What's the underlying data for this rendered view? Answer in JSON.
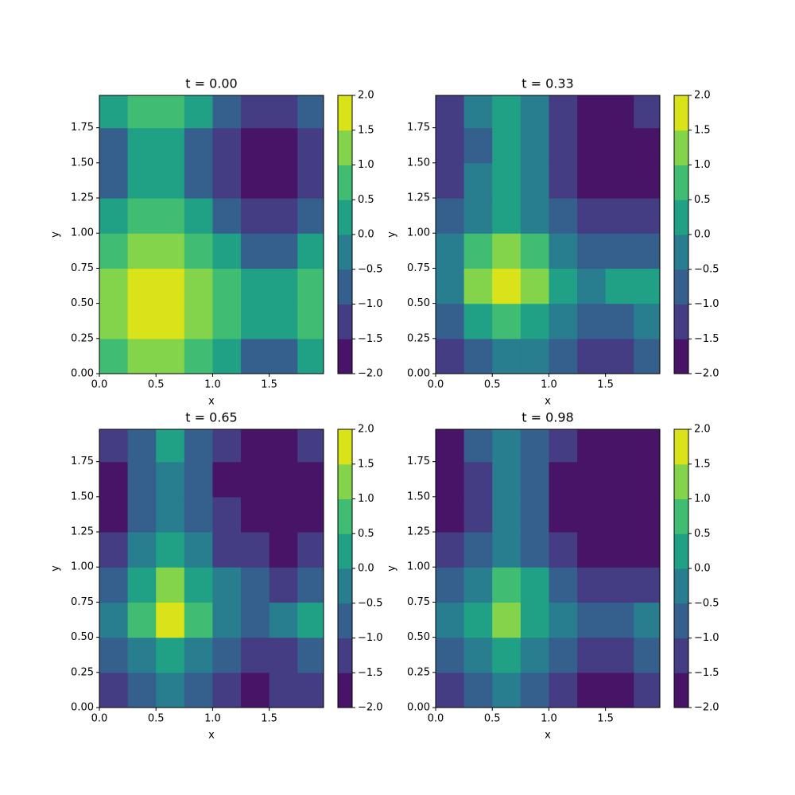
{
  "chart_data": [
    {
      "type": "contour",
      "title": "t = 0.00",
      "xlabel": "x",
      "ylabel": "y",
      "x": [
        0.125,
        0.375,
        0.625,
        0.875,
        1.125,
        1.375,
        1.625,
        1.875
      ],
      "y": [
        0.125,
        0.375,
        0.625,
        0.875,
        1.125,
        1.375,
        1.625,
        1.875
      ],
      "z": [
        [
          0.77,
          1.31,
          1.31,
          0.77,
          0,
          -0.54,
          -0.54,
          0
        ],
        [
          1.31,
          1.85,
          1.85,
          1.31,
          0.54,
          0,
          0,
          0.54
        ],
        [
          1.31,
          1.85,
          1.85,
          1.31,
          0.54,
          0,
          0,
          0.54
        ],
        [
          0.77,
          1.31,
          1.31,
          0.77,
          0,
          -0.54,
          -0.54,
          0
        ],
        [
          0,
          0.54,
          0.54,
          0,
          -0.77,
          -1.31,
          -1.31,
          -0.77
        ],
        [
          -0.54,
          0,
          0,
          -0.54,
          -1.31,
          -1.85,
          -1.85,
          -1.31
        ],
        [
          -0.54,
          0,
          0,
          -0.54,
          -1.31,
          -1.85,
          -1.85,
          -1.31
        ],
        [
          0,
          0.54,
          0.54,
          0,
          -0.77,
          -1.31,
          -1.31,
          -0.77
        ]
      ],
      "xlim": [
        0,
        1.98
      ],
      "ylim": [
        0,
        1.98
      ],
      "xticks": [
        {
          "value": 0,
          "label": "0.0"
        },
        {
          "value": 0.5,
          "label": "0.5"
        },
        {
          "value": 1,
          "label": "1.0"
        },
        {
          "value": 1.5,
          "label": "1.5"
        }
      ],
      "yticks": [
        {
          "value": 0,
          "label": "0.00"
        },
        {
          "value": 0.25,
          "label": "0.25"
        },
        {
          "value": 0.5,
          "label": "0.50"
        },
        {
          "value": 0.75,
          "label": "0.75"
        },
        {
          "value": 1,
          "label": "1.00"
        },
        {
          "value": 1.25,
          "label": "1.25"
        },
        {
          "value": 1.5,
          "label": "1.50"
        },
        {
          "value": 1.75,
          "label": "1.75"
        }
      ],
      "levels": [
        {
          "value": -2,
          "label": "−2.0"
        },
        {
          "value": -1.5,
          "label": "−1.5"
        },
        {
          "value": -1,
          "label": "−1.0"
        },
        {
          "value": -0.5,
          "label": "−0.5"
        },
        {
          "value": 0,
          "label": "0.0"
        },
        {
          "value": 0.5,
          "label": "0.5"
        },
        {
          "value": 1,
          "label": "1.0"
        },
        {
          "value": 1.5,
          "label": "1.5"
        },
        {
          "value": 2,
          "label": "2.0"
        }
      ],
      "colors": [
        "#481467",
        "#443d84",
        "#35608d",
        "#287d8e",
        "#20a186",
        "#40bd72",
        "#84d44b",
        "#dae319"
      ]
    },
    {
      "type": "contour",
      "title": "t = 0.33",
      "xlabel": "x",
      "ylabel": "y",
      "x": [
        0.125,
        0.375,
        0.625,
        0.875,
        1.125,
        1.375,
        1.625,
        1.875
      ],
      "y": [
        0.125,
        0.375,
        0.625,
        0.875,
        1.125,
        1.375,
        1.625,
        1.875
      ],
      "z": [
        [
          -1.2,
          -0.6,
          -0.2,
          -0.4,
          -1.0,
          -1.4,
          -1.3,
          -1.0
        ],
        [
          -0.6,
          0.3,
          0.8,
          0.4,
          -0.4,
          -0.9,
          -0.8,
          -0.4
        ],
        [
          -0.2,
          1.0,
          1.6,
          1.0,
          0.1,
          -0.4,
          0.2,
          0.3
        ],
        [
          -0.5,
          0.6,
          1.0,
          0.6,
          -0.2,
          -0.7,
          -0.7,
          -0.6
        ],
        [
          -1.0,
          -0.2,
          0.2,
          -0.1,
          -0.8,
          -1.3,
          -1.5,
          -1.4
        ],
        [
          -1.5,
          -0.5,
          0.1,
          -0.4,
          -1.3,
          -1.9,
          -1.9,
          -1.7
        ],
        [
          -1.4,
          -0.6,
          0.2,
          -0.4,
          -1.4,
          -1.9,
          -1.9,
          -1.7
        ],
        [
          -1.1,
          -0.4,
          0.4,
          -0.3,
          -1.2,
          -1.7,
          -1.7,
          -1.3
        ]
      ],
      "xlim": [
        0,
        1.98
      ],
      "ylim": [
        0,
        1.98
      ],
      "xticks": [
        {
          "value": 0,
          "label": "0.0"
        },
        {
          "value": 0.5,
          "label": "0.5"
        },
        {
          "value": 1,
          "label": "1.0"
        },
        {
          "value": 1.5,
          "label": "1.5"
        }
      ],
      "yticks": [
        {
          "value": 0,
          "label": "0.00"
        },
        {
          "value": 0.25,
          "label": "0.25"
        },
        {
          "value": 0.5,
          "label": "0.50"
        },
        {
          "value": 0.75,
          "label": "0.75"
        },
        {
          "value": 1,
          "label": "1.00"
        },
        {
          "value": 1.25,
          "label": "1.25"
        },
        {
          "value": 1.5,
          "label": "1.50"
        },
        {
          "value": 1.75,
          "label": "1.75"
        }
      ],
      "levels": [
        {
          "value": -2,
          "label": "−2.0"
        },
        {
          "value": -1.5,
          "label": "−1.5"
        },
        {
          "value": -1,
          "label": "−1.0"
        },
        {
          "value": -0.5,
          "label": "−0.5"
        },
        {
          "value": 0,
          "label": "0.0"
        },
        {
          "value": 0.5,
          "label": "0.5"
        },
        {
          "value": 1,
          "label": "1.0"
        },
        {
          "value": 1.5,
          "label": "1.5"
        },
        {
          "value": 2,
          "label": "2.0"
        }
      ],
      "colors": [
        "#481467",
        "#443d84",
        "#35608d",
        "#287d8e",
        "#20a186",
        "#40bd72",
        "#84d44b",
        "#dae319"
      ]
    },
    {
      "type": "contour",
      "title": "t = 0.65",
      "xlabel": "x",
      "ylabel": "y",
      "x": [
        0.125,
        0.375,
        0.625,
        0.875,
        1.125,
        1.375,
        1.625,
        1.875
      ],
      "y": [
        0.125,
        0.375,
        0.625,
        0.875,
        1.125,
        1.375,
        1.625,
        1.875
      ],
      "z": [
        [
          -1.3,
          -0.9,
          -0.3,
          -0.6,
          -1.2,
          -1.7,
          -1.5,
          -1.2
        ],
        [
          -0.9,
          -0.3,
          0.2,
          -0.1,
          -0.8,
          -1.2,
          -1.1,
          -0.8
        ],
        [
          -0.3,
          0.5,
          1.5,
          0.7,
          -0.2,
          -0.6,
          -0.3,
          0.2
        ],
        [
          -0.7,
          0.2,
          1.0,
          0.3,
          -0.5,
          -1.0,
          -1.1,
          -0.9
        ],
        [
          -1.1,
          -0.5,
          0.3,
          -0.3,
          -1.1,
          -1.5,
          -1.6,
          -1.5
        ],
        [
          -1.6,
          -0.9,
          -0.1,
          -0.7,
          -1.5,
          -2.0,
          -2.0,
          -1.8
        ],
        [
          -1.7,
          -1.0,
          -0.2,
          -0.8,
          -1.6,
          -2.0,
          -2.0,
          -1.8
        ],
        [
          -1.3,
          -0.8,
          0.3,
          -0.7,
          -1.4,
          -1.8,
          -1.8,
          -1.3
        ]
      ],
      "xlim": [
        0,
        1.98
      ],
      "ylim": [
        0,
        1.98
      ],
      "xticks": [
        {
          "value": 0,
          "label": "0.0"
        },
        {
          "value": 0.5,
          "label": "0.5"
        },
        {
          "value": 1,
          "label": "1.0"
        },
        {
          "value": 1.5,
          "label": "1.5"
        }
      ],
      "yticks": [
        {
          "value": 0,
          "label": "0.00"
        },
        {
          "value": 0.25,
          "label": "0.25"
        },
        {
          "value": 0.5,
          "label": "0.50"
        },
        {
          "value": 0.75,
          "label": "0.75"
        },
        {
          "value": 1,
          "label": "1.00"
        },
        {
          "value": 1.25,
          "label": "1.25"
        },
        {
          "value": 1.5,
          "label": "1.50"
        },
        {
          "value": 1.75,
          "label": "1.75"
        }
      ],
      "levels": [
        {
          "value": -2,
          "label": "−2.0"
        },
        {
          "value": -1.5,
          "label": "−1.5"
        },
        {
          "value": -1,
          "label": "−1.0"
        },
        {
          "value": -0.5,
          "label": "−0.5"
        },
        {
          "value": 0,
          "label": "0.0"
        },
        {
          "value": 0.5,
          "label": "0.5"
        },
        {
          "value": 1,
          "label": "1.0"
        },
        {
          "value": 1.5,
          "label": "1.5"
        },
        {
          "value": 2,
          "label": "2.0"
        }
      ],
      "colors": [
        "#481467",
        "#443d84",
        "#35608d",
        "#287d8e",
        "#20a186",
        "#40bd72",
        "#84d44b",
        "#dae319"
      ]
    },
    {
      "type": "contour",
      "title": "t = 0.98",
      "xlabel": "x",
      "ylabel": "y",
      "x": [
        0.125,
        0.375,
        0.625,
        0.875,
        1.125,
        1.375,
        1.625,
        1.875
      ],
      "y": [
        0.125,
        0.375,
        0.625,
        0.875,
        1.125,
        1.375,
        1.625,
        1.875
      ],
      "z": [
        [
          -1.4,
          -1.0,
          -0.4,
          -0.7,
          -1.3,
          -1.8,
          -1.6,
          -1.3
        ],
        [
          -1.0,
          -0.5,
          0.0,
          -0.3,
          -1.0,
          -1.4,
          -1.3,
          -1.0
        ],
        [
          -0.4,
          0.2,
          1.2,
          0.4,
          -0.4,
          -0.8,
          -0.6,
          -0.3
        ],
        [
          -0.9,
          -0.2,
          0.8,
          0.1,
          -0.7,
          -1.2,
          -1.3,
          -1.1
        ],
        [
          -1.3,
          -0.8,
          -0.1,
          -0.6,
          -1.3,
          -1.7,
          -1.8,
          -1.6
        ],
        [
          -1.7,
          -1.1,
          -0.3,
          -0.9,
          -1.6,
          -2.0,
          -2.0,
          -1.9
        ],
        [
          -1.8,
          -1.2,
          -0.4,
          -1.0,
          -1.7,
          -2.0,
          -2.0,
          -1.9
        ],
        [
          -1.6,
          -1.0,
          -0.2,
          -0.9,
          -1.5,
          -1.9,
          -1.9,
          -1.6
        ]
      ],
      "xlim": [
        0,
        1.98
      ],
      "ylim": [
        0,
        1.98
      ],
      "xticks": [
        {
          "value": 0,
          "label": "0.0"
        },
        {
          "value": 0.5,
          "label": "0.5"
        },
        {
          "value": 1,
          "label": "1.0"
        },
        {
          "value": 1.5,
          "label": "1.5"
        }
      ],
      "yticks": [
        {
          "value": 0,
          "label": "0.00"
        },
        {
          "value": 0.25,
          "label": "0.25"
        },
        {
          "value": 0.5,
          "label": "0.50"
        },
        {
          "value": 0.75,
          "label": "0.75"
        },
        {
          "value": 1,
          "label": "1.00"
        },
        {
          "value": 1.25,
          "label": "1.25"
        },
        {
          "value": 1.5,
          "label": "1.50"
        },
        {
          "value": 1.75,
          "label": "1.75"
        }
      ],
      "levels": [
        {
          "value": -2,
          "label": "−2.0"
        },
        {
          "value": -1.5,
          "label": "−1.5"
        },
        {
          "value": -1,
          "label": "−1.0"
        },
        {
          "value": -0.5,
          "label": "−0.5"
        },
        {
          "value": 0,
          "label": "0.0"
        },
        {
          "value": 0.5,
          "label": "0.5"
        },
        {
          "value": 1,
          "label": "1.0"
        },
        {
          "value": 1.5,
          "label": "1.5"
        },
        {
          "value": 2,
          "label": "2.0"
        }
      ],
      "colors": [
        "#481467",
        "#443d84",
        "#35608d",
        "#287d8e",
        "#20a186",
        "#40bd72",
        "#84d44b",
        "#dae319"
      ]
    }
  ]
}
